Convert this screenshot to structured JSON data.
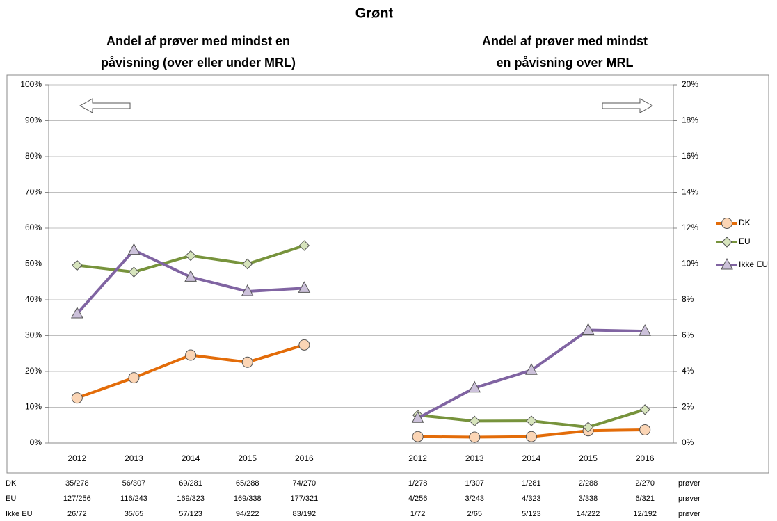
{
  "chart_data": {
    "type": "line",
    "title": "Grønt",
    "subtitle_left": [
      "Andel af prøver med mindst en",
      "påvisning (over eller under MRL)"
    ],
    "subtitle_right": [
      "Andel af prøver med mindst",
      "en påvisning over MRL"
    ],
    "categories": [
      "2012",
      "2013",
      "2014",
      "2015",
      "2016",
      null,
      "2012",
      "2013",
      "2014",
      "2015",
      "2016"
    ],
    "ylim": [
      0,
      100
    ],
    "yticks": [
      {
        "value": 0,
        "label": "0%"
      },
      {
        "value": 10,
        "label": "10%"
      },
      {
        "value": 20,
        "label": "20%"
      },
      {
        "value": 30,
        "label": "30%"
      },
      {
        "value": 40,
        "label": "40%"
      },
      {
        "value": 50,
        "label": "50%"
      },
      {
        "value": 60,
        "label": "60%"
      },
      {
        "value": 70,
        "label": "70%"
      },
      {
        "value": 80,
        "label": "80%"
      },
      {
        "value": 90,
        "label": "90%"
      },
      {
        "value": 100,
        "label": "100%"
      }
    ],
    "y2lim": [
      0,
      20
    ],
    "y2ticks": [
      {
        "value": 0,
        "label": "0%"
      },
      {
        "value": 2,
        "label": "2%"
      },
      {
        "value": 4,
        "label": "4%"
      },
      {
        "value": 6,
        "label": "6%"
      },
      {
        "value": 8,
        "label": "8%"
      },
      {
        "value": 10,
        "label": "10%"
      },
      {
        "value": 12,
        "label": "12%"
      },
      {
        "value": 14,
        "label": "14%"
      },
      {
        "value": 16,
        "label": "16%"
      },
      {
        "value": 18,
        "label": "18%"
      },
      {
        "value": 20,
        "label": "20%"
      }
    ],
    "grid": true,
    "legend": "right",
    "series": [
      {
        "name": "DK",
        "color": "#e36c09",
        "marker_fill": "#fbd5b5",
        "marker": "circle",
        "axis": "y",
        "values": [
          12.59,
          18.24,
          24.56,
          22.57,
          27.41,
          null,
          null,
          null,
          null,
          null,
          null
        ]
      },
      {
        "name": "EU",
        "color": "#77933c",
        "marker_fill": "#d7e4bd",
        "marker": "diamond",
        "axis": "y",
        "values": [
          49.61,
          47.74,
          52.32,
          50.0,
          55.14,
          null,
          null,
          null,
          null,
          null,
          null
        ]
      },
      {
        "name": "Ikke EU",
        "color": "#8064a2",
        "marker_fill": "#ccc1da",
        "marker": "triangle",
        "axis": "y",
        "values": [
          36.11,
          53.85,
          46.34,
          42.34,
          43.23,
          null,
          null,
          null,
          null,
          null,
          null
        ]
      },
      {
        "name": "DK",
        "color": "#e36c09",
        "marker_fill": "#fbd5b5",
        "marker": "circle",
        "axis": "y2",
        "values": [
          null,
          null,
          null,
          null,
          null,
          null,
          0.36,
          0.33,
          0.36,
          0.69,
          0.74
        ]
      },
      {
        "name": "EU",
        "color": "#77933c",
        "marker_fill": "#d7e4bd",
        "marker": "diamond",
        "axis": "y2",
        "values": [
          null,
          null,
          null,
          null,
          null,
          null,
          1.56,
          1.23,
          1.24,
          0.89,
          1.87
        ]
      },
      {
        "name": "Ikke EU",
        "color": "#8064a2",
        "marker_fill": "#ccc1da",
        "marker": "triangle",
        "axis": "y2",
        "values": [
          null,
          null,
          null,
          null,
          null,
          null,
          1.39,
          3.08,
          4.07,
          6.31,
          6.25
        ]
      }
    ],
    "table": {
      "rows": [
        {
          "label": "DK",
          "cells": [
            "35/278",
            "56/307",
            "69/281",
            "65/288",
            "74/270",
            "1/278",
            "1/307",
            "1/281",
            "2/288",
            "2/270"
          ],
          "unit": "prøver"
        },
        {
          "label": "EU",
          "cells": [
            "127/256",
            "116/243",
            "169/323",
            "169/338",
            "177/321",
            "4/256",
            "3/243",
            "4/323",
            "3/338",
            "6/321"
          ],
          "unit": "prøver"
        },
        {
          "label": "Ikke EU",
          "cells": [
            "26/72",
            "35/65",
            "57/123",
            "94/222",
            "83/192",
            "1/72",
            "2/65",
            "5/123",
            "14/222",
            "12/192"
          ],
          "unit": "prøver"
        }
      ]
    }
  }
}
